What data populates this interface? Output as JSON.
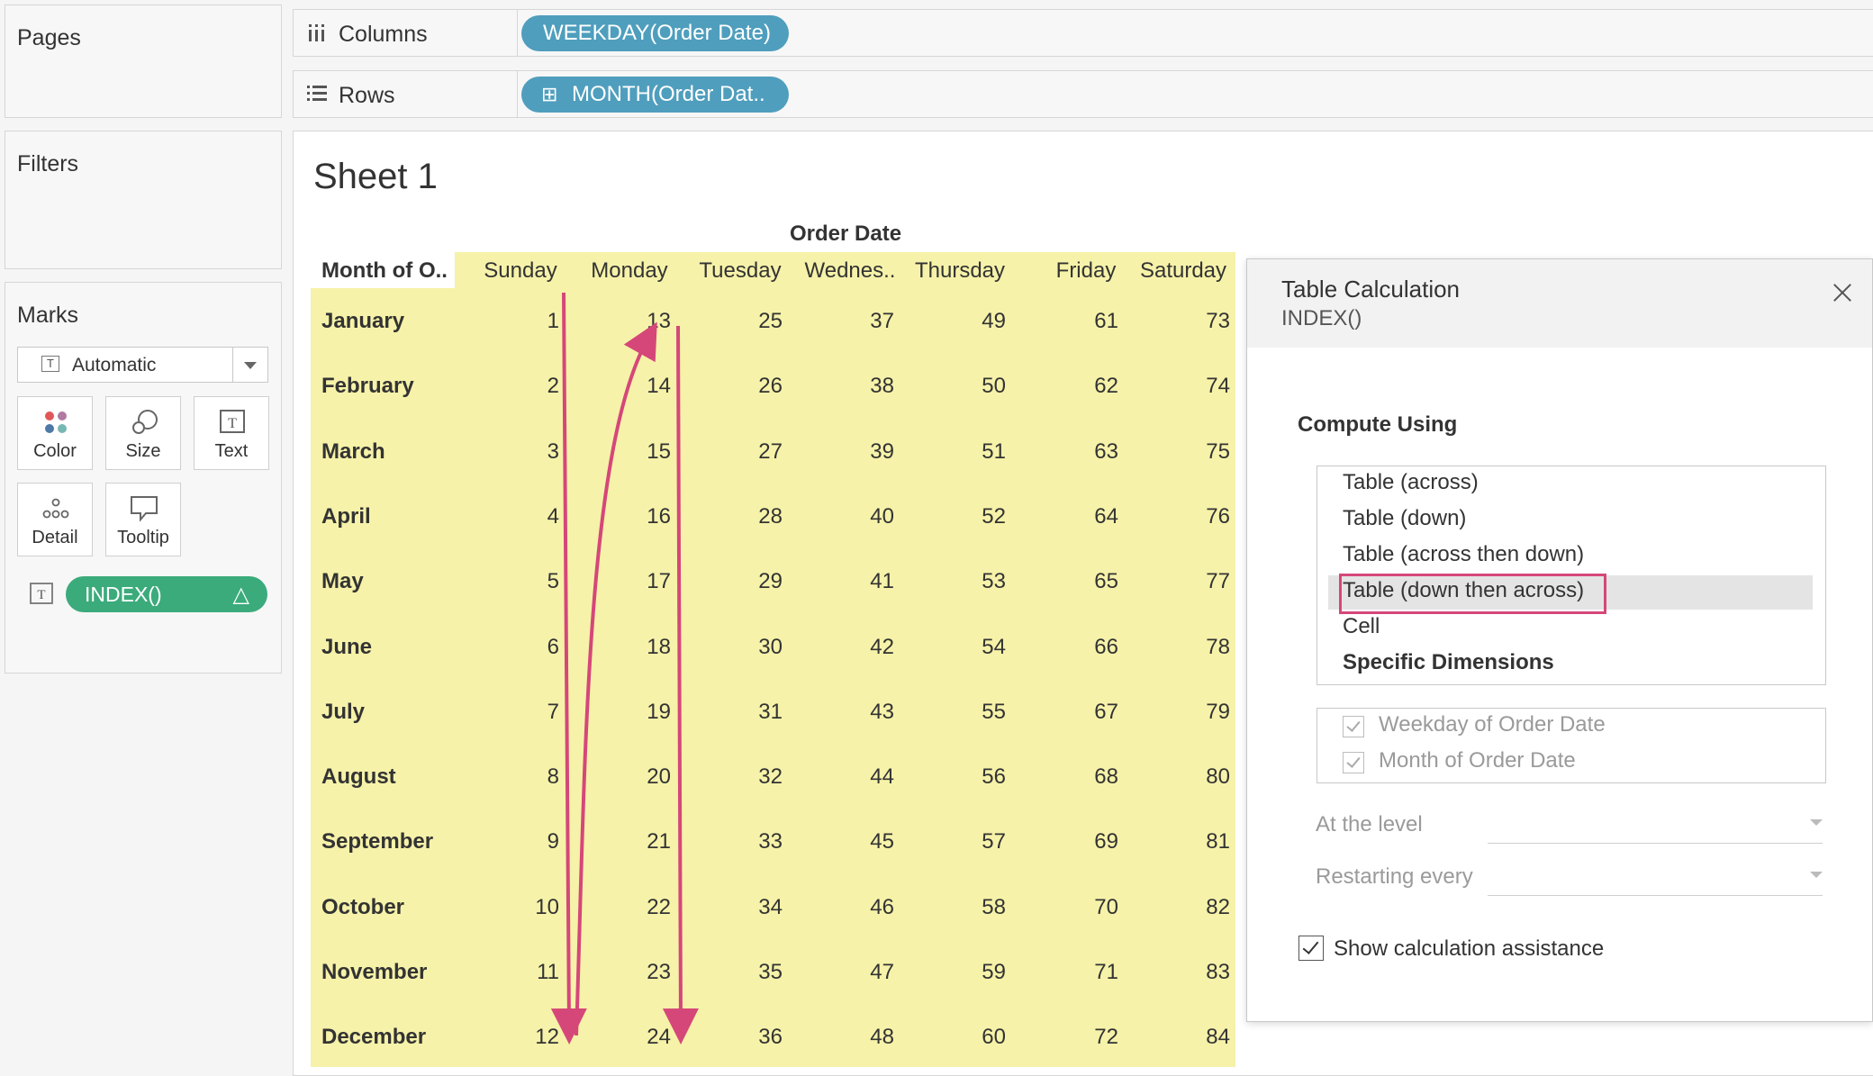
{
  "panes": {
    "pages_title": "Pages",
    "filters_title": "Filters",
    "marks_title": "Marks",
    "mark_type": "Automatic",
    "mark_buttons": [
      "Color",
      "Size",
      "Text",
      "Detail",
      "Tooltip"
    ],
    "pill_label": "INDEX()",
    "pill_delta": "△"
  },
  "shelves": {
    "columns_label": "Columns",
    "columns_pill": "WEEKDAY(Order Date)",
    "rows_label": "Rows",
    "rows_pill": "MONTH(Order Dat..",
    "rows_pill_icon": "⊞"
  },
  "sheet": {
    "title": "Sheet 1",
    "header_group": "Order Date",
    "row_header": "Month of O..",
    "days": [
      "Sunday",
      "Monday",
      "Tuesday",
      "Wednes..",
      "Thursday",
      "Friday",
      "Saturday"
    ],
    "months": [
      "January",
      "February",
      "March",
      "April",
      "May",
      "June",
      "July",
      "August",
      "September",
      "October",
      "November",
      "December"
    ],
    "values": [
      [
        "1",
        "13",
        "25",
        "37",
        "49",
        "61",
        "73"
      ],
      [
        "2",
        "14",
        "26",
        "38",
        "50",
        "62",
        "74"
      ],
      [
        "3",
        "15",
        "27",
        "39",
        "51",
        "63",
        "75"
      ],
      [
        "4",
        "16",
        "28",
        "40",
        "52",
        "64",
        "76"
      ],
      [
        "5",
        "17",
        "29",
        "41",
        "53",
        "65",
        "77"
      ],
      [
        "6",
        "18",
        "30",
        "42",
        "54",
        "66",
        "78"
      ],
      [
        "7",
        "19",
        "31",
        "43",
        "55",
        "67",
        "79"
      ],
      [
        "8",
        "20",
        "32",
        "44",
        "56",
        "68",
        "80"
      ],
      [
        "9",
        "21",
        "33",
        "45",
        "57",
        "69",
        "81"
      ],
      [
        "10",
        "22",
        "34",
        "46",
        "58",
        "70",
        "82"
      ],
      [
        "11",
        "23",
        "35",
        "47",
        "59",
        "71",
        "83"
      ],
      [
        "12",
        "24",
        "36",
        "48",
        "60",
        "72",
        "84"
      ]
    ],
    "grid_color": "#f6f2a9",
    "arrow_color": "#d54779"
  },
  "dialog": {
    "title": "Table Calculation",
    "subtitle": "INDEX()",
    "compute_using": "Compute Using",
    "options": [
      "Table (across)",
      "Table (down)",
      "Table (across then down)",
      "Table (down then across)",
      "Cell",
      "Specific Dimensions"
    ],
    "selected_index": 3,
    "dimensions": [
      "Weekday of Order Date",
      "Month of Order Date"
    ],
    "at_level_label": "At the level",
    "restarting_label": "Restarting every",
    "assist_label": "Show calculation assistance",
    "assist_checked": true
  }
}
